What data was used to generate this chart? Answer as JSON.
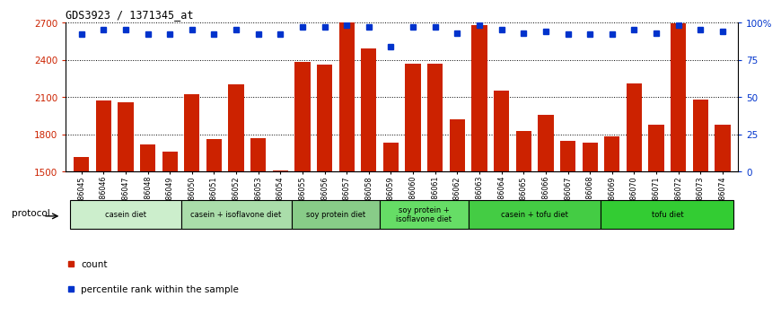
{
  "title": "GDS3923 / 1371345_at",
  "samples": [
    "GSM586045",
    "GSM586046",
    "GSM586047",
    "GSM586048",
    "GSM586049",
    "GSM586050",
    "GSM586051",
    "GSM586052",
    "GSM586053",
    "GSM586054",
    "GSM586055",
    "GSM586056",
    "GSM586057",
    "GSM586058",
    "GSM586059",
    "GSM586060",
    "GSM586061",
    "GSM586062",
    "GSM586063",
    "GSM586064",
    "GSM586065",
    "GSM586066",
    "GSM586067",
    "GSM586068",
    "GSM586069",
    "GSM586070",
    "GSM586071",
    "GSM586072",
    "GSM586073",
    "GSM586074"
  ],
  "counts": [
    1620,
    2070,
    2060,
    1720,
    1660,
    2120,
    1760,
    2200,
    1770,
    1510,
    2380,
    2360,
    2700,
    2490,
    1730,
    2370,
    2370,
    1920,
    2680,
    2150,
    1830,
    1960,
    1750,
    1730,
    1780,
    2210,
    1880,
    2690,
    2080,
    1880
  ],
  "percentile": [
    92,
    95,
    95,
    92,
    92,
    95,
    92,
    95,
    92,
    92,
    97,
    97,
    98,
    97,
    84,
    97,
    97,
    93,
    98,
    95,
    93,
    94,
    92,
    92,
    92,
    95,
    93,
    98,
    95,
    94
  ],
  "ylim_left": [
    1500,
    2700
  ],
  "ylim_right": [
    0,
    100
  ],
  "yticks_left": [
    1500,
    1800,
    2100,
    2400,
    2700
  ],
  "yticks_right": [
    0,
    25,
    50,
    75,
    100
  ],
  "bar_color": "#cc2200",
  "dot_color": "#0033cc",
  "bg_color": "#ffffff",
  "groups": [
    {
      "label": "casein diet",
      "start": 0,
      "end": 4,
      "color": "#cceecc"
    },
    {
      "label": "casein + isoflavone diet",
      "start": 5,
      "end": 9,
      "color": "#aaddaa"
    },
    {
      "label": "soy protein diet",
      "start": 10,
      "end": 13,
      "color": "#88cc88"
    },
    {
      "label": "soy protein +\nisoflavone diet",
      "start": 14,
      "end": 17,
      "color": "#66dd66"
    },
    {
      "label": "casein + tofu diet",
      "start": 18,
      "end": 23,
      "color": "#44cc44"
    },
    {
      "label": "tofu diet",
      "start": 24,
      "end": 29,
      "color": "#33cc33"
    }
  ],
  "protocol_label": "protocol"
}
